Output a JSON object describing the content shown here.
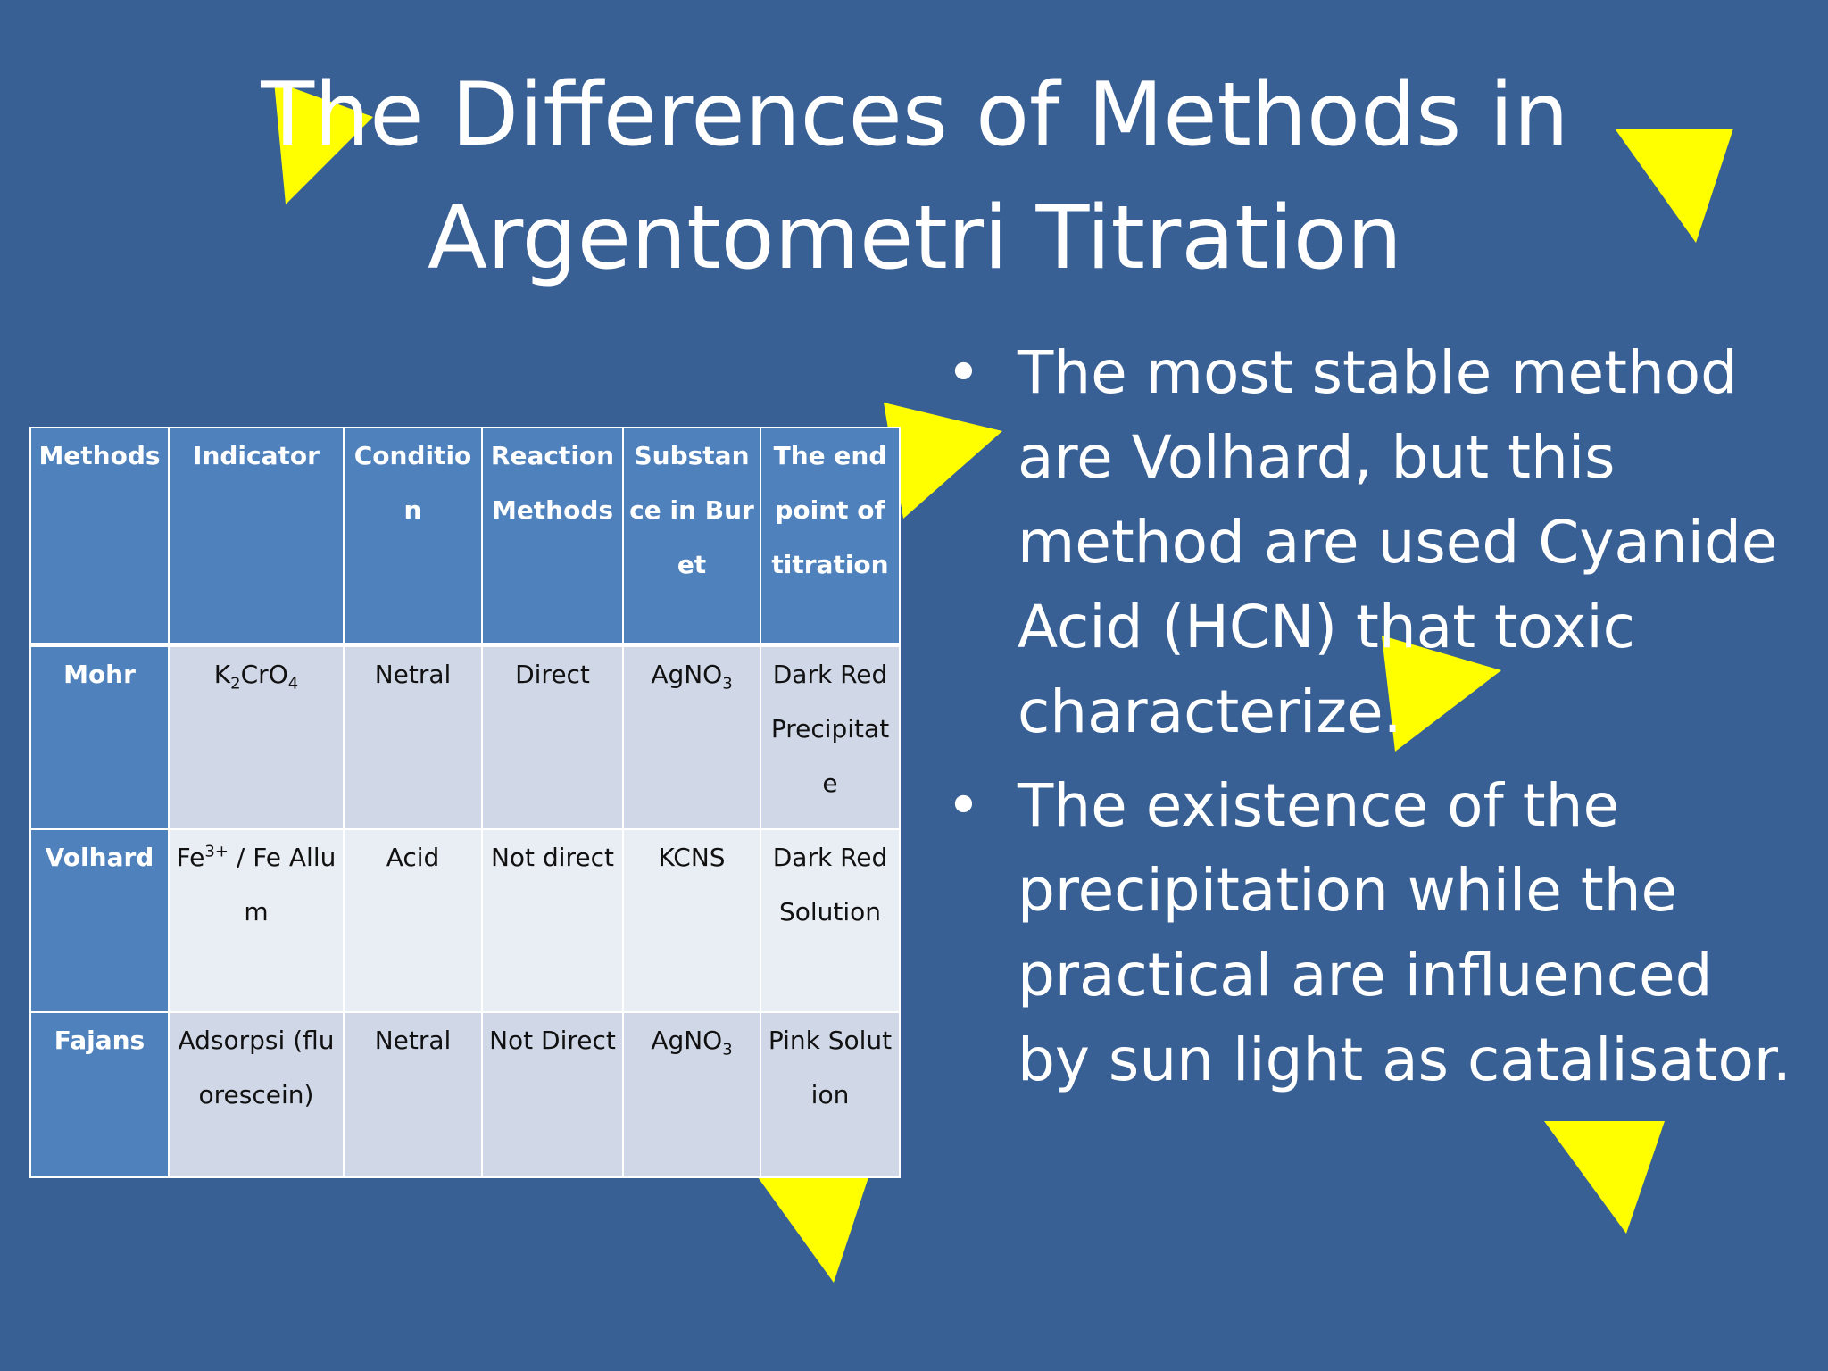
{
  "title": [
    "The Differences of Methods in",
    "Argentometri Titration"
  ],
  "table": {
    "header": [
      "Methods",
      "Indicator",
      "Condition",
      "Reaction Methods",
      "Substance in Buret",
      "The endpoint of titration"
    ],
    "rows": [
      [
        "Mohr",
        [
          "K",
          {
            "sub": "2"
          },
          "CrO",
          {
            "sub": "4"
          }
        ],
        "Netral",
        "Direct",
        [
          "AgNO",
          {
            "sub": "3"
          }
        ],
        "Dark Red Precipitate"
      ],
      [
        "Volhard",
        [
          "Fe",
          {
            "sup": "3+"
          },
          " / Fe Allum"
        ],
        "Acid",
        "Not direct",
        "KCNS",
        "Dark Red Solution"
      ],
      [
        "Fajans",
        "Adsorpsi (fluorescein)",
        "Netral",
        "Not Direct",
        [
          "AgNO",
          {
            "sub": "3"
          }
        ],
        "Pink Solution"
      ]
    ]
  },
  "bullets": [
    "The most stable method are Volhard, but this method are used Cyanide Acid (HCN) that toxic characterize.",
    "The existence of the precipitation while the practical are influenced by sun light as catalisator."
  ]
}
